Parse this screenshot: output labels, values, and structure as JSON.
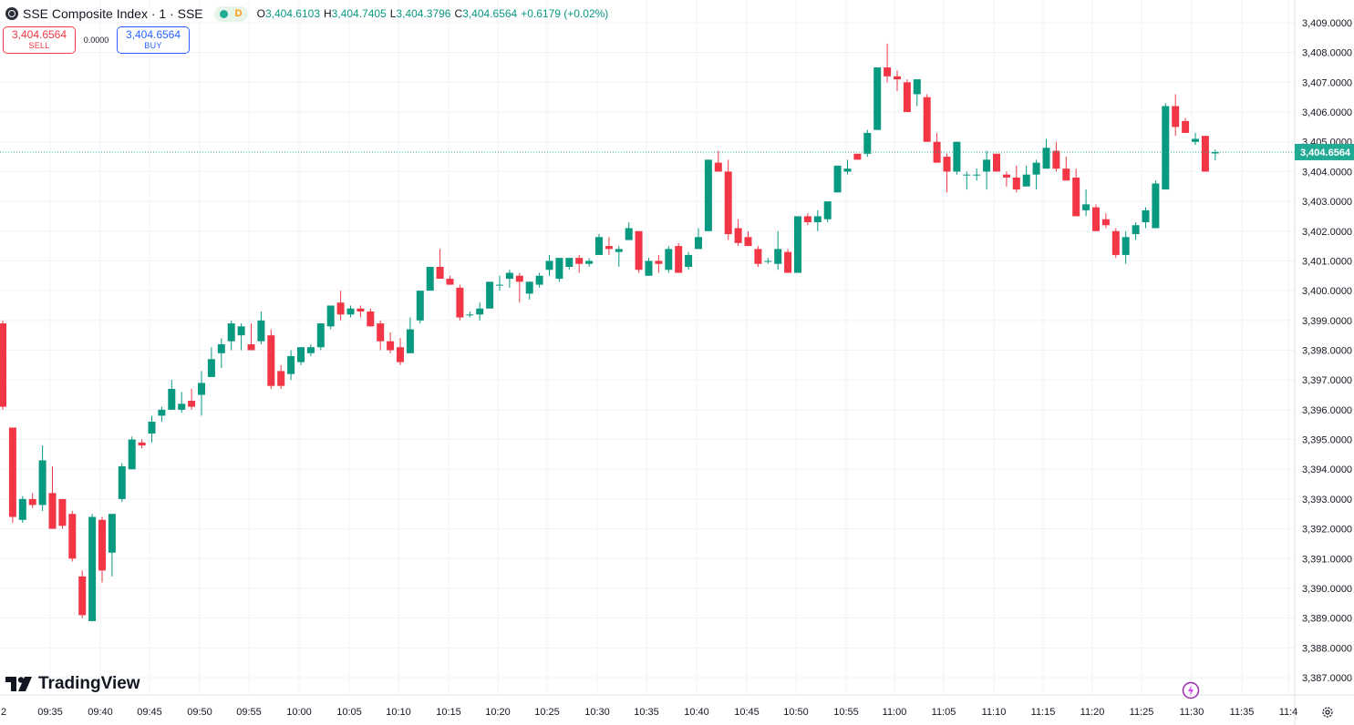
{
  "legend": {
    "symbol": "SSE Composite Index · 1 · SSE",
    "status_letter": "D",
    "open_label": "O",
    "open": "3,404.6103",
    "high_label": "H",
    "high": "3,404.7405",
    "low_label": "L",
    "low": "3,404.3796",
    "close_label": "C",
    "close": "3,404.6564",
    "change": "+0.6179 (+0.02%)"
  },
  "trade": {
    "sell_price": "3,404.6564",
    "sell_label": "SELL",
    "spread": "0.0000",
    "buy_price": "3,404.6564",
    "buy_label": "BUY"
  },
  "branding": {
    "logo_text": "TradingView"
  },
  "colors": {
    "up": "#089981",
    "down": "#f23645",
    "grid": "#f0f3fa",
    "last_price": "#22ab94"
  },
  "chart_data": {
    "type": "candlestick",
    "interval": "1 minute",
    "y_ticks": [
      3387,
      3388,
      3389,
      3390,
      3391,
      3392,
      3393,
      3394,
      3395,
      3396,
      3397,
      3398,
      3399,
      3400,
      3401,
      3402,
      3403,
      3404,
      3405,
      3406,
      3407,
      3408,
      3409
    ],
    "y_tick_labels": [
      "3,387.0000",
      "3,388.0000",
      "3,389.0000",
      "3,390.0000",
      "3,391.0000",
      "3,392.0000",
      "3,393.0000",
      "3,394.0000",
      "3,395.0000",
      "3,396.0000",
      "3,397.0000",
      "3,398.0000",
      "3,399.0000",
      "3,400.0000",
      "3,401.0000",
      "3,402.0000",
      "3,403.0000",
      "3,404.0000",
      "3,405.0000",
      "3,406.0000",
      "3,407.0000",
      "3,408.0000",
      "3,409.0000"
    ],
    "x_tick_labels": [
      "2",
      "09:35",
      "09:40",
      "09:45",
      "09:50",
      "09:55",
      "10:00",
      "10:05",
      "10:10",
      "10:15",
      "10:20",
      "10:25",
      "10:30",
      "10:35",
      "10:40",
      "10:45",
      "10:50",
      "10:55",
      "11:00",
      "11:05",
      "11:10",
      "11:15",
      "11:20",
      "11:25",
      "11:30",
      "11:35",
      "11:4"
    ],
    "last_price": 3404.6564,
    "last_price_label": "3,404.6564",
    "candles_ohlc": [
      [
        3398.9,
        3399.0,
        3396.0,
        3396.1
      ],
      [
        3395.4,
        3395.4,
        3392.2,
        3392.4
      ],
      [
        3392.3,
        3393.1,
        3392.2,
        3393.0
      ],
      [
        3393.0,
        3393.2,
        3392.7,
        3392.8
      ],
      [
        3392.8,
        3394.8,
        3392.6,
        3394.3
      ],
      [
        3393.2,
        3394.1,
        3392.0,
        3392.0
      ],
      [
        3393.0,
        3393.0,
        3392.0,
        3392.1
      ],
      [
        3392.5,
        3392.6,
        3390.9,
        3391.0
      ],
      [
        3390.4,
        3390.6,
        3389.0,
        3389.1
      ],
      [
        3388.9,
        3392.5,
        3388.9,
        3392.4
      ],
      [
        3392.3,
        3392.4,
        3390.2,
        3390.6
      ],
      [
        3391.2,
        3392.5,
        3390.4,
        3392.5
      ],
      [
        3393.0,
        3394.2,
        3392.9,
        3394.1
      ],
      [
        3394.0,
        3395.1,
        3394.0,
        3395.0
      ],
      [
        3394.9,
        3395.0,
        3394.7,
        3394.8
      ],
      [
        3395.2,
        3395.8,
        3394.9,
        3395.6
      ],
      [
        3395.8,
        3396.1,
        3395.6,
        3396.0
      ],
      [
        3396.0,
        3397.0,
        3396.0,
        3396.7
      ],
      [
        3396.0,
        3396.6,
        3395.9,
        3396.2
      ],
      [
        3396.3,
        3396.7,
        3396.0,
        3396.1
      ],
      [
        3396.5,
        3397.3,
        3395.8,
        3396.9
      ],
      [
        3397.1,
        3398.1,
        3397.1,
        3397.7
      ],
      [
        3397.9,
        3398.4,
        3397.4,
        3398.2
      ],
      [
        3398.3,
        3399.0,
        3398.0,
        3398.9
      ],
      [
        3398.5,
        3398.9,
        3398.0,
        3398.8
      ],
      [
        3398.2,
        3398.9,
        3398.0,
        3398.0
      ],
      [
        3398.3,
        3399.3,
        3398.2,
        3399.0
      ],
      [
        3398.5,
        3398.7,
        3396.7,
        3396.8
      ],
      [
        3397.3,
        3397.5,
        3396.7,
        3396.8
      ],
      [
        3397.2,
        3398.0,
        3397.0,
        3397.8
      ],
      [
        3397.6,
        3398.1,
        3397.5,
        3398.1
      ],
      [
        3397.9,
        3398.2,
        3397.8,
        3398.1
      ],
      [
        3398.1,
        3398.9,
        3398.0,
        3398.9
      ],
      [
        3398.8,
        3399.5,
        3398.7,
        3399.5
      ],
      [
        3399.6,
        3400.0,
        3399.0,
        3399.2
      ],
      [
        3399.2,
        3399.5,
        3399.1,
        3399.4
      ],
      [
        3399.4,
        3399.5,
        3399.1,
        3399.3
      ],
      [
        3399.3,
        3399.4,
        3398.8,
        3398.8
      ],
      [
        3398.9,
        3399.0,
        3398.0,
        3398.3
      ],
      [
        3398.3,
        3398.6,
        3397.9,
        3398.0
      ],
      [
        3398.1,
        3398.4,
        3397.5,
        3397.6
      ],
      [
        3397.9,
        3399.1,
        3397.9,
        3398.7
      ],
      [
        3399.0,
        3400.0,
        3398.9,
        3400.0
      ],
      [
        3400.0,
        3400.8,
        3400.0,
        3400.8
      ],
      [
        3400.8,
        3401.4,
        3400.4,
        3400.4
      ],
      [
        3400.4,
        3400.5,
        3400.2,
        3400.2
      ],
      [
        3400.1,
        3400.2,
        3399.0,
        3399.1
      ],
      [
        3399.2,
        3399.3,
        3399.1,
        3399.2
      ],
      [
        3399.2,
        3399.6,
        3399.0,
        3399.4
      ],
      [
        3399.4,
        3400.3,
        3399.4,
        3400.3
      ],
      [
        3400.2,
        3400.5,
        3400.0,
        3400.2
      ],
      [
        3400.4,
        3400.7,
        3400.1,
        3400.6
      ],
      [
        3400.5,
        3400.6,
        3399.6,
        3400.3
      ],
      [
        3399.9,
        3400.3,
        3399.7,
        3400.3
      ],
      [
        3400.2,
        3400.6,
        3400.1,
        3400.5
      ],
      [
        3400.7,
        3401.2,
        3400.5,
        3401.0
      ],
      [
        3400.4,
        3401.1,
        3400.3,
        3401.1
      ],
      [
        3400.8,
        3401.1,
        3400.7,
        3401.1
      ],
      [
        3401.1,
        3401.2,
        3400.6,
        3400.9
      ],
      [
        3400.9,
        3401.1,
        3400.8,
        3401.0
      ],
      [
        3401.2,
        3401.9,
        3401.2,
        3401.8
      ],
      [
        3401.5,
        3401.8,
        3401.2,
        3401.4
      ],
      [
        3401.3,
        3401.5,
        3400.8,
        3401.4
      ],
      [
        3401.7,
        3402.3,
        3401.7,
        3402.1
      ],
      [
        3402.0,
        3402.0,
        3400.6,
        3400.7
      ],
      [
        3400.5,
        3401.1,
        3400.5,
        3401.0
      ],
      [
        3401.0,
        3401.2,
        3400.6,
        3400.9
      ],
      [
        3400.7,
        3401.5,
        3400.6,
        3401.4
      ],
      [
        3401.5,
        3401.6,
        3400.6,
        3400.6
      ],
      [
        3400.8,
        3401.3,
        3400.7,
        3401.2
      ],
      [
        3401.4,
        3402.1,
        3401.4,
        3401.8
      ],
      [
        3402.0,
        3404.4,
        3402.0,
        3404.4
      ],
      [
        3404.3,
        3404.7,
        3404.0,
        3404.0
      ],
      [
        3404.0,
        3404.4,
        3401.7,
        3401.9
      ],
      [
        3402.1,
        3402.4,
        3401.5,
        3401.6
      ],
      [
        3401.8,
        3402.0,
        3401.5,
        3401.5
      ],
      [
        3401.4,
        3401.5,
        3400.8,
        3400.9
      ],
      [
        3401.0,
        3401.1,
        3400.9,
        3401.0
      ],
      [
        3400.9,
        3402.0,
        3400.7,
        3401.4
      ],
      [
        3401.3,
        3401.4,
        3400.6,
        3400.6
      ],
      [
        3400.6,
        3402.3,
        3400.6,
        3402.5
      ],
      [
        3402.5,
        3402.6,
        3402.2,
        3402.3
      ],
      [
        3402.3,
        3402.7,
        3402.0,
        3402.5
      ],
      [
        3402.4,
        3403.0,
        3402.3,
        3403.0
      ],
      [
        3403.3,
        3404.2,
        3403.3,
        3404.2
      ],
      [
        3404.0,
        3404.4,
        3403.9,
        3404.1
      ],
      [
        3404.6,
        3404.6,
        3404.4,
        3404.4
      ],
      [
        3404.6,
        3405.4,
        3404.5,
        3405.3
      ],
      [
        3405.4,
        3407.5,
        3405.4,
        3407.5
      ],
      [
        3407.5,
        3408.3,
        3407.0,
        3407.2
      ],
      [
        3407.2,
        3407.4,
        3406.7,
        3407.1
      ],
      [
        3407.0,
        3407.1,
        3406.0,
        3406.0
      ],
      [
        3406.6,
        3407.1,
        3406.2,
        3407.1
      ],
      [
        3406.5,
        3406.6,
        3405.0,
        3405.0
      ],
      [
        3405.0,
        3405.3,
        3404.3,
        3404.3
      ],
      [
        3404.5,
        3404.6,
        3403.3,
        3404.0
      ],
      [
        3404.0,
        3405.0,
        3403.9,
        3405.0
      ],
      [
        3403.9,
        3404.0,
        3403.4,
        3403.9
      ],
      [
        3403.9,
        3404.1,
        3403.7,
        3403.9
      ],
      [
        3404.0,
        3404.7,
        3403.4,
        3404.4
      ],
      [
        3404.6,
        3404.6,
        3404.0,
        3404.0
      ],
      [
        3403.9,
        3404.0,
        3403.5,
        3403.8
      ],
      [
        3403.8,
        3404.2,
        3403.3,
        3403.4
      ],
      [
        3403.5,
        3404.2,
        3403.5,
        3403.9
      ],
      [
        3403.9,
        3404.4,
        3403.4,
        3404.3
      ],
      [
        3404.1,
        3405.1,
        3404.1,
        3404.8
      ],
      [
        3404.7,
        3405.0,
        3404.0,
        3404.1
      ],
      [
        3404.1,
        3404.5,
        3403.9,
        3403.7
      ],
      [
        3403.8,
        3404.1,
        3402.5,
        3402.5
      ],
      [
        3402.7,
        3403.4,
        3402.5,
        3402.9
      ],
      [
        3402.8,
        3402.9,
        3402.0,
        3402.0
      ],
      [
        3402.4,
        3402.6,
        3402.1,
        3402.2
      ],
      [
        3402.0,
        3402.1,
        3401.1,
        3401.2
      ],
      [
        3401.2,
        3402.0,
        3400.9,
        3401.8
      ],
      [
        3401.9,
        3402.3,
        3401.7,
        3402.2
      ],
      [
        3402.3,
        3402.8,
        3402.1,
        3402.7
      ],
      [
        3402.1,
        3403.7,
        3402.1,
        3403.6
      ],
      [
        3403.4,
        3406.3,
        3403.4,
        3406.2
      ],
      [
        3406.2,
        3406.6,
        3405.2,
        3405.5
      ],
      [
        3405.7,
        3405.8,
        3405.3,
        3405.3
      ],
      [
        3405.0,
        3405.3,
        3404.9,
        3405.1
      ],
      [
        3405.2,
        3405.2,
        3404.0,
        3404.0
      ],
      [
        3404.6103,
        3404.7405,
        3404.3796,
        3404.6564
      ]
    ]
  }
}
